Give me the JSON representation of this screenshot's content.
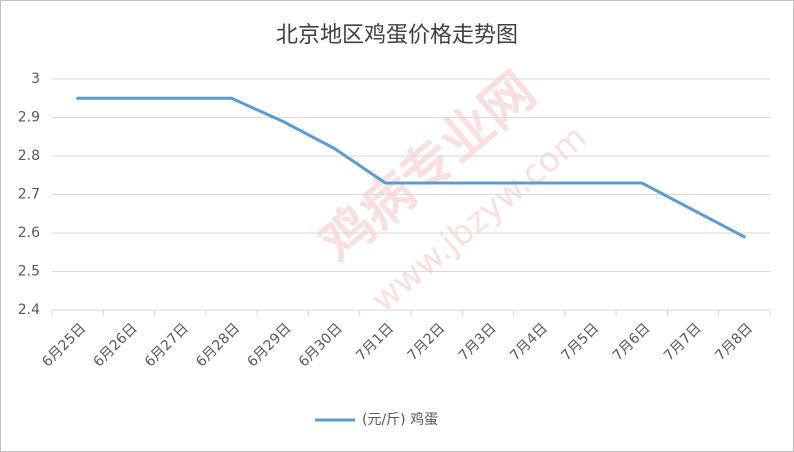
{
  "chart_data": {
    "type": "line",
    "title": "北京地区鸡蛋价格走势图",
    "watermark": [
      "鸡病专业网",
      "www.jbzyw.com"
    ],
    "categories": [
      "6月25日",
      "6月26日",
      "6月27日",
      "6月28日",
      "6月29日",
      "6月30日",
      "7月1日",
      "7月2日",
      "7月3日",
      "7月4日",
      "7月5日",
      "7月6日",
      "7月7日",
      "7月8日"
    ],
    "series": [
      {
        "name": "(元/斤) 鸡蛋",
        "color": "#5b9bd5",
        "values": [
          2.95,
          2.95,
          2.95,
          2.95,
          2.89,
          2.82,
          2.73,
          2.73,
          2.73,
          2.73,
          2.73,
          2.73,
          2.66,
          2.59
        ]
      }
    ],
    "ylim": [
      2.4,
      3
    ],
    "yticks": [
      2.4,
      2.5,
      2.6,
      2.7,
      2.8,
      2.9,
      3
    ],
    "grid": true,
    "legend": "bottom"
  }
}
